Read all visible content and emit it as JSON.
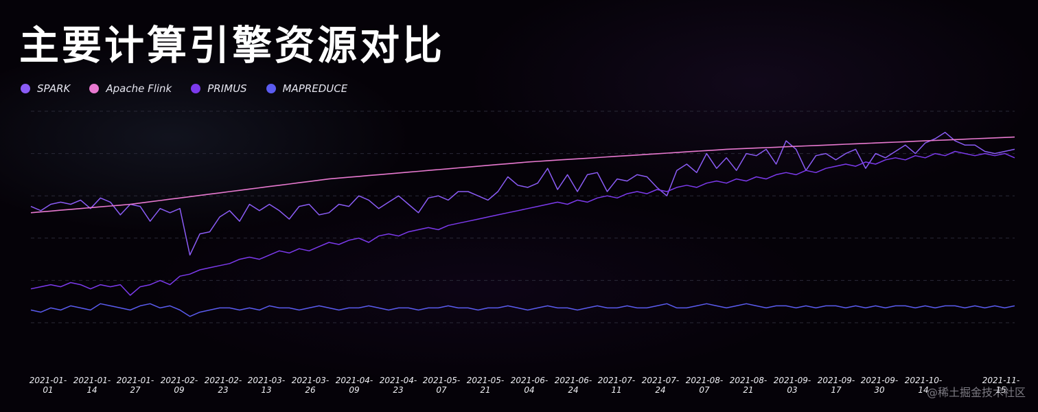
{
  "title": "主要计算引擎资源对比",
  "watermark": "@稀土掘金技术社区",
  "colors": {
    "spark": "#8b5cf6",
    "flink": "#e879d0",
    "primus": "#7c3aed",
    "mapreduce": "#5b5cf0",
    "grid": "#2a2a38",
    "tick": "#f0f0f5"
  },
  "legend": [
    {
      "name": "SPARK",
      "color": "#8b5cf6"
    },
    {
      "name": "Apache Flink",
      "color": "#e879d0"
    },
    {
      "name": "PRIMUS",
      "color": "#7c3aed"
    },
    {
      "name": "MAPREDUCE",
      "color": "#5b5cf0"
    }
  ],
  "chart_data": {
    "type": "line",
    "title": "主要计算引擎资源对比",
    "xlabel": "",
    "ylabel": "",
    "ylim": [
      0,
      100
    ],
    "grid": "horizontal dashed",
    "legend_position": "top-left",
    "x_tick_labels": [
      [
        "2021-01-",
        "01"
      ],
      [
        "2021-01-",
        "14"
      ],
      [
        "2021-01-",
        "27"
      ],
      [
        "2021-02-",
        "09"
      ],
      [
        "2021-02-",
        "23"
      ],
      [
        "2021-03-",
        "13"
      ],
      [
        "2021-03-",
        "26"
      ],
      [
        "2021-04-",
        "09"
      ],
      [
        "2021-04-",
        "23"
      ],
      [
        "2021-05-",
        "07"
      ],
      [
        "2021-05-",
        "21"
      ],
      [
        "2021-06-",
        "04"
      ],
      [
        "2021-06-",
        "24"
      ],
      [
        "2021-07-",
        "11"
      ],
      [
        "2021-07-",
        "24"
      ],
      [
        "2021-08-",
        "07"
      ],
      [
        "2021-08-",
        "21"
      ],
      [
        "2021-09-",
        "03"
      ],
      [
        "2021-09-",
        "17"
      ],
      [
        "2021-09-",
        "30"
      ],
      [
        "2021-10-",
        "14"
      ],
      [
        "2021-11-",
        "15"
      ]
    ],
    "series": [
      {
        "name": "SPARK",
        "color": "#8b5cf6",
        "values": [
          55,
          53,
          56,
          57,
          56,
          58,
          54,
          59,
          57,
          51,
          56,
          55,
          48,
          54,
          52,
          54,
          32,
          42,
          43,
          50,
          53,
          48,
          56,
          53,
          56,
          53,
          49,
          55,
          56,
          51,
          52,
          56,
          55,
          60,
          58,
          54,
          57,
          60,
          56,
          52,
          59,
          60,
          58,
          62,
          62,
          60,
          58,
          62,
          69,
          65,
          64,
          66,
          73,
          63,
          70,
          62,
          70,
          71,
          62,
          68,
          67,
          70,
          69,
          64,
          60,
          72,
          75,
          71,
          80,
          73,
          78,
          72,
          80,
          79,
          82,
          75,
          86,
          82,
          72,
          79,
          80,
          77,
          80,
          82,
          73,
          80,
          78,
          81,
          84,
          80,
          85,
          87,
          90,
          86,
          84,
          84,
          81,
          80,
          81,
          82
        ]
      },
      {
        "name": "Apache Flink",
        "color": "#e879d0",
        "values": [
          52,
          52.4,
          52.8,
          53.2,
          53.6,
          54,
          54.4,
          54.8,
          55.2,
          55.6,
          56,
          56.6,
          57.2,
          57.8,
          58.4,
          59,
          59.6,
          60.2,
          60.8,
          61.4,
          62,
          62.6,
          63.2,
          63.8,
          64.4,
          65,
          65.6,
          66.2,
          66.8,
          67.4,
          68,
          68.4,
          68.8,
          69.2,
          69.6,
          70,
          70.4,
          70.8,
          71.2,
          71.6,
          72,
          72.4,
          72.8,
          73.2,
          73.6,
          74,
          74.4,
          74.8,
          75.2,
          75.6,
          76,
          76.3,
          76.6,
          76.9,
          77.2,
          77.5,
          77.8,
          78.1,
          78.4,
          78.7,
          79,
          79.3,
          79.6,
          79.9,
          80.2,
          80.5,
          80.8,
          81.1,
          81.4,
          81.7,
          82,
          82.2,
          82.4,
          82.6,
          82.8,
          83,
          83.2,
          83.4,
          83.6,
          83.8,
          84,
          84.2,
          84.4,
          84.6,
          84.8,
          85,
          85.2,
          85.4,
          85.6,
          85.8,
          86,
          86.2,
          86.4,
          86.6,
          86.8,
          87,
          87.2,
          87.4,
          87.6,
          87.8
        ]
      },
      {
        "name": "PRIMUS",
        "color": "#7c3aed",
        "values": [
          16,
          17,
          18,
          17,
          19,
          18,
          16,
          18,
          17,
          18,
          13,
          17,
          18,
          20,
          18,
          22,
          23,
          25,
          26,
          27,
          28,
          30,
          31,
          30,
          32,
          34,
          33,
          35,
          34,
          36,
          38,
          37,
          39,
          40,
          38,
          41,
          42,
          41,
          43,
          44,
          45,
          44,
          46,
          47,
          48,
          49,
          50,
          51,
          52,
          53,
          54,
          55,
          56,
          57,
          56,
          58,
          57,
          59,
          60,
          59,
          61,
          62,
          61,
          63,
          62,
          64,
          65,
          64,
          66,
          67,
          66,
          68,
          67,
          69,
          68,
          70,
          71,
          70,
          72,
          71,
          73,
          74,
          75,
          74,
          76,
          75,
          77,
          78,
          77,
          79,
          78,
          80,
          79,
          81,
          80,
          79,
          80,
          79,
          80,
          78
        ]
      },
      {
        "name": "MAPREDUCE",
        "color": "#5b5cf0",
        "values": [
          6,
          5,
          7,
          6,
          8,
          7,
          6,
          9,
          8,
          7,
          6,
          8,
          9,
          7,
          8,
          6,
          3,
          5,
          6,
          7,
          7,
          6,
          7,
          6,
          8,
          7,
          7,
          6,
          7,
          8,
          7,
          6,
          7,
          7,
          8,
          7,
          6,
          7,
          7,
          6,
          7,
          7,
          8,
          7,
          7,
          6,
          7,
          7,
          8,
          7,
          6,
          7,
          8,
          7,
          7,
          6,
          7,
          8,
          7,
          7,
          8,
          7,
          7,
          8,
          9,
          7,
          7,
          8,
          9,
          8,
          7,
          8,
          9,
          8,
          7,
          8,
          8,
          7,
          8,
          7,
          8,
          8,
          7,
          8,
          7,
          8,
          7,
          8,
          8,
          7,
          8,
          7,
          8,
          8,
          7,
          8,
          7,
          8,
          7,
          8
        ]
      }
    ]
  }
}
